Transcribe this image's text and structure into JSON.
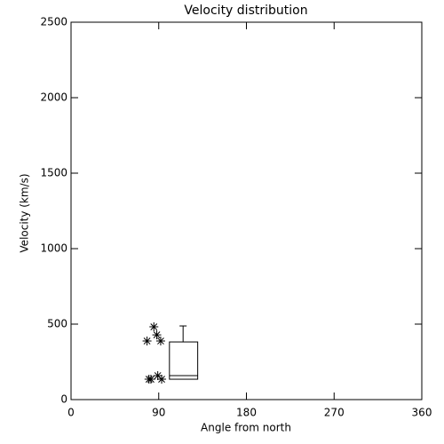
{
  "chart_data": {
    "type": "scatter",
    "title": "Velocity distribution",
    "x_label": "Angle from north",
    "y_label": "Velocity (km/s)",
    "x": [
      78,
      85,
      88,
      92,
      80,
      82,
      89,
      93
    ],
    "y": [
      388,
      482,
      429,
      388,
      135,
      135,
      159,
      135
    ],
    "box": {
      "x": [
        101,
        130
      ],
      "whisker_x": 115,
      "min": 135,
      "q1": 135,
      "median": 159,
      "q3": 382,
      "max": 488
    },
    "color": "#000000",
    "xlim": [
      0,
      360
    ],
    "xticks": [
      0,
      90,
      180,
      270,
      360
    ],
    "ylim": [
      0,
      2500
    ],
    "yticks": [
      0,
      500,
      1000,
      1500,
      2000,
      2500
    ]
  }
}
